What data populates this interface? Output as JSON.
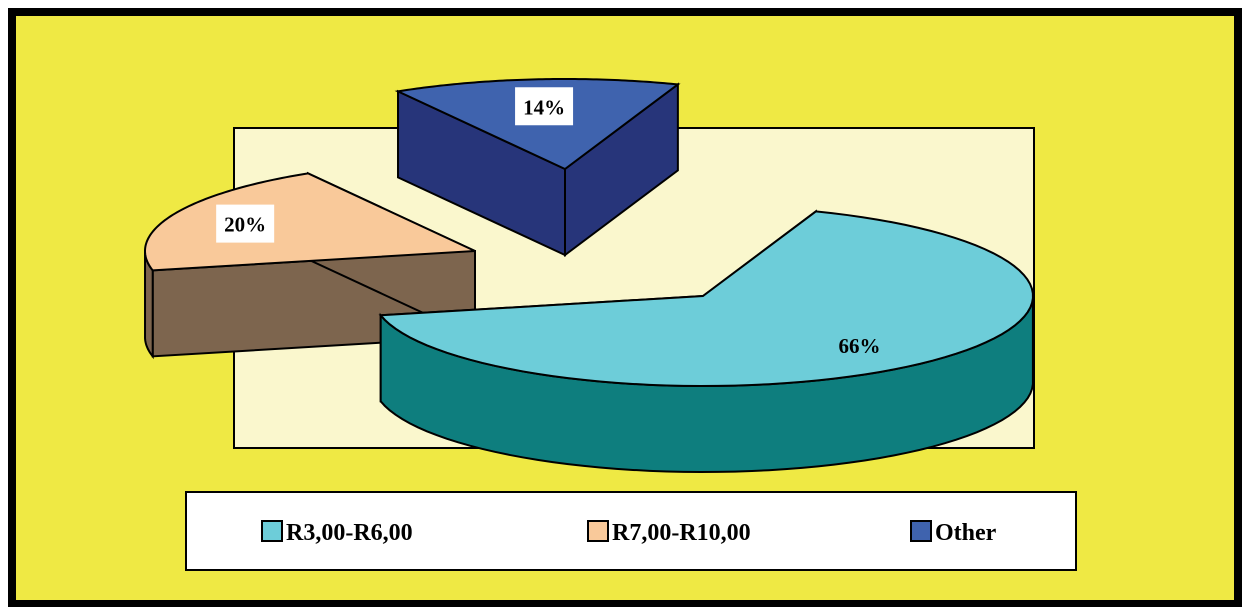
{
  "chart_data": {
    "type": "pie",
    "style": "3d-exploded",
    "title": "",
    "slices": [
      {
        "name": "R3,00-R6,00",
        "value": 66,
        "label": "66%",
        "color": "#6DCDD9",
        "side_color": "#0E7E7E"
      },
      {
        "name": "R7,00-R10,00",
        "value": 20,
        "label": "20%",
        "color": "#F9C99A",
        "side_color": "#7D654E"
      },
      {
        "name": "Other",
        "value": 14,
        "label": "14%",
        "color": "#3F63AE",
        "side_color": "#27357A"
      }
    ],
    "legend": {
      "placement": "bottom",
      "entries": [
        "R3,00-R6,00",
        "R7,00-R10,00",
        "Other"
      ]
    }
  },
  "colors": {
    "frame_background": "#EFE944",
    "plot_background": "#FAF7CD",
    "frame_border": "#000000"
  }
}
